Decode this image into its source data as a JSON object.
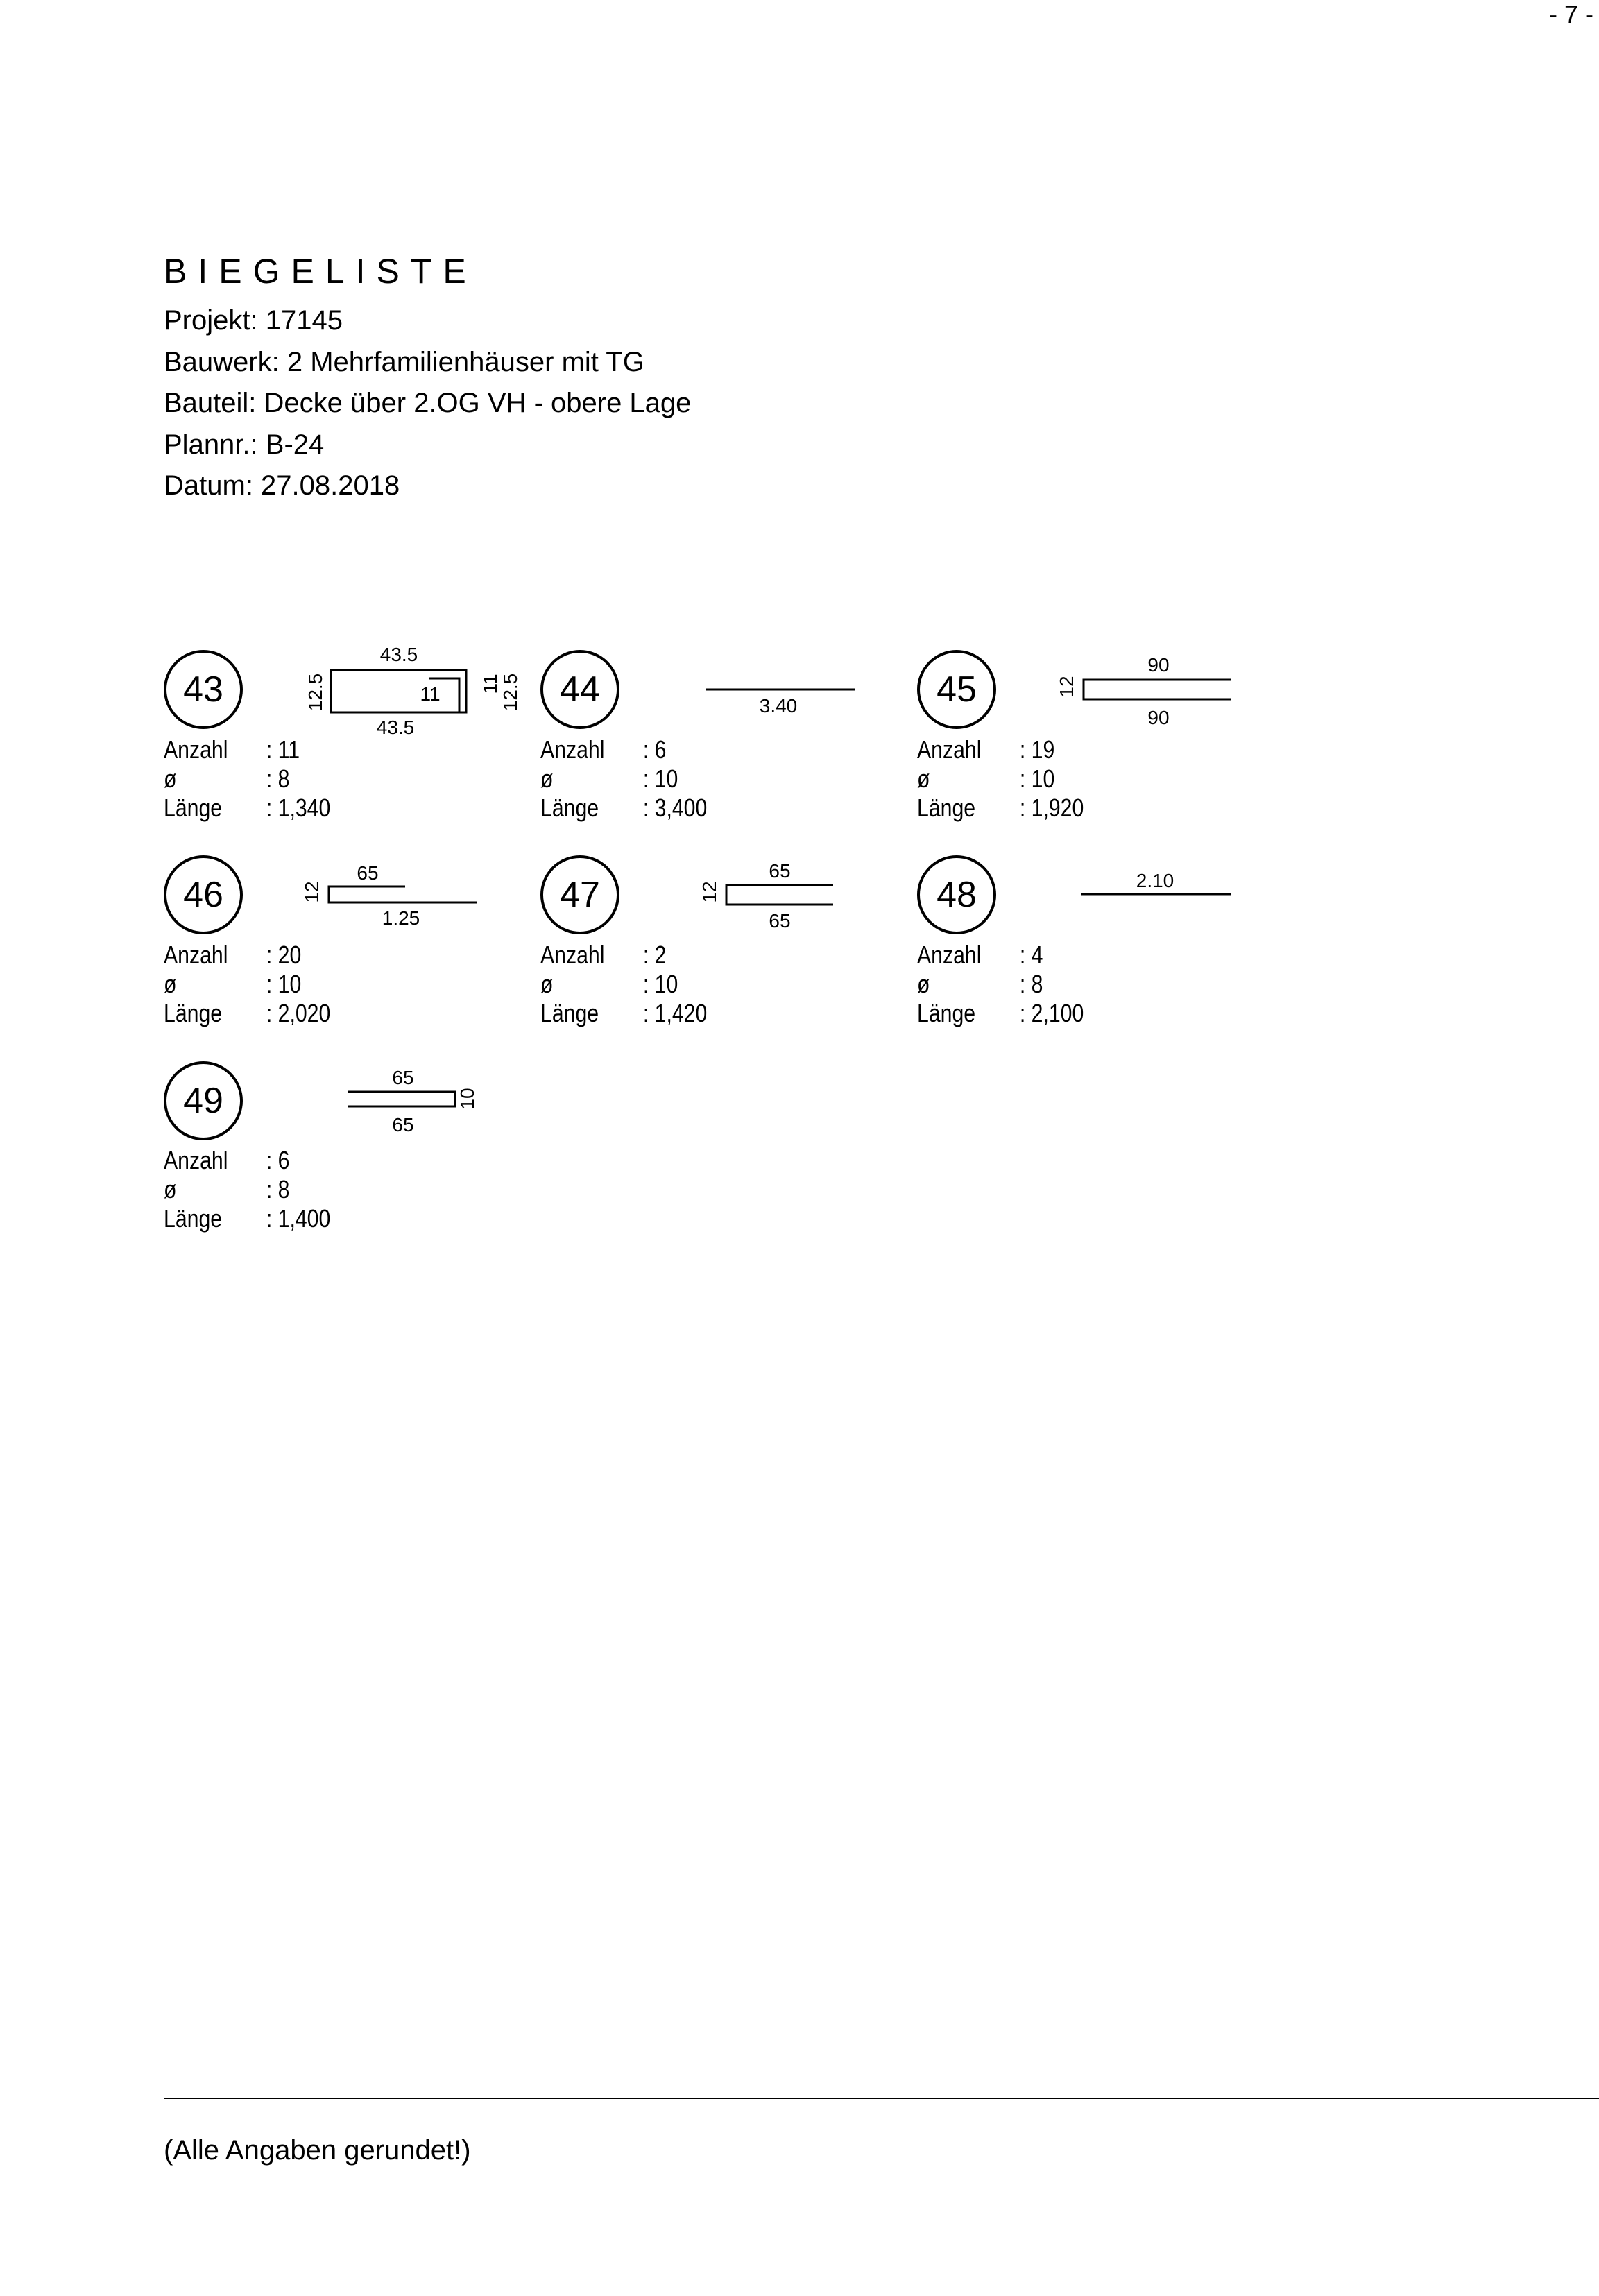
{
  "page_number": "- 7 -",
  "header": {
    "title": "BIEGELISTE",
    "projekt": "Projekt: 17145",
    "bauwerk": "Bauwerk: 2 Mehrfamilienhäuser mit TG",
    "bauteil": "Bauteil: Decke über 2.OG VH - obere Lage",
    "plannr": "Plannr.: B-24",
    "datum": "Datum: 27.08.2018"
  },
  "labels": {
    "anzahl": "Anzahl",
    "durchmesser": "ø",
    "laenge": "Länge"
  },
  "items": [
    {
      "pos": "43",
      "anzahl": ": 11",
      "durchmesser": ": 8",
      "laenge": ": 1,340",
      "dims": {
        "top": "43.5",
        "bottom": "43.5",
        "left": "12.5",
        "inner": "11",
        "right_inner": "11",
        "right": "12.5"
      }
    },
    {
      "pos": "44",
      "anzahl": ": 6",
      "durchmesser": ": 10",
      "laenge": ": 3,400",
      "dims": {
        "length": "3.40"
      }
    },
    {
      "pos": "45",
      "anzahl": ": 19",
      "durchmesser": ": 10",
      "laenge": ": 1,920",
      "dims": {
        "hook": "12",
        "top": "90",
        "bottom": "90"
      }
    },
    {
      "pos": "46",
      "anzahl": ": 20",
      "durchmesser": ": 10",
      "laenge": ": 2,020",
      "dims": {
        "hook": "12",
        "top": "65",
        "bottom": "1.25"
      }
    },
    {
      "pos": "47",
      "anzahl": ": 2",
      "durchmesser": ": 10",
      "laenge": ": 1,420",
      "dims": {
        "hook": "12",
        "top": "65",
        "bottom": "65"
      }
    },
    {
      "pos": "48",
      "anzahl": ": 4",
      "durchmesser": ": 8",
      "laenge": ": 2,100",
      "dims": {
        "length": "2.10"
      }
    },
    {
      "pos": "49",
      "anzahl": ": 6",
      "durchmesser": ": 8",
      "laenge": ": 1,400",
      "dims": {
        "top": "65",
        "bottom": "65",
        "hook": "10"
      }
    }
  ],
  "footer": {
    "note": "(Alle Angaben gerundet!)"
  }
}
